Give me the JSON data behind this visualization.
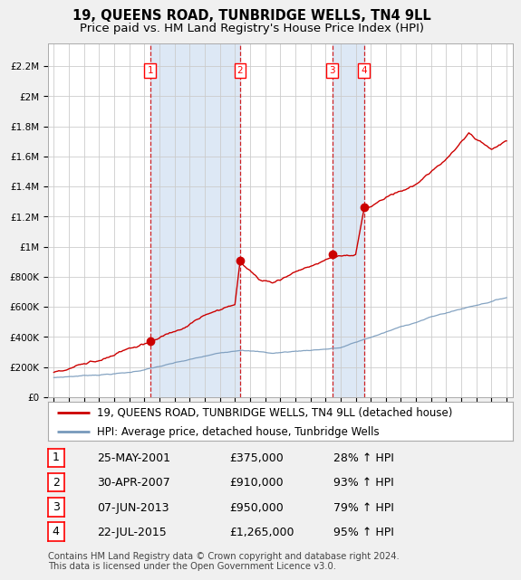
{
  "title": "19, QUEENS ROAD, TUNBRIDGE WELLS, TN4 9LL",
  "subtitle": "Price paid vs. HM Land Registry's House Price Index (HPI)",
  "ylabel_ticks": [
    "£0",
    "£200K",
    "£400K",
    "£600K",
    "£800K",
    "£1M",
    "£1.2M",
    "£1.4M",
    "£1.6M",
    "£1.8M",
    "£2M",
    "£2.2M"
  ],
  "ytick_values": [
    0,
    200000,
    400000,
    600000,
    800000,
    1000000,
    1200000,
    1400000,
    1600000,
    1800000,
    2000000,
    2200000
  ],
  "ylim": [
    0,
    2350000
  ],
  "xlim_start": 1994.6,
  "xlim_end": 2025.4,
  "red_line_color": "#cc0000",
  "blue_line_color": "#7799bb",
  "grid_color": "#cccccc",
  "background_color": "#f0f0f0",
  "plot_bg_color": "#ffffff",
  "highlight_bg_color": "#dde8f5",
  "sale_dates": [
    2001.38,
    2007.33,
    2013.44,
    2015.55
  ],
  "sale_prices": [
    375000,
    910000,
    950000,
    1265000
  ],
  "sale_labels": [
    "1",
    "2",
    "3",
    "4"
  ],
  "vline_color": "#cc0000",
  "legend_line1": "19, QUEENS ROAD, TUNBRIDGE WELLS, TN4 9LL (detached house)",
  "legend_line2": "HPI: Average price, detached house, Tunbridge Wells",
  "table_data": [
    [
      "1",
      "25-MAY-2001",
      "£375,000",
      "28% ↑ HPI"
    ],
    [
      "2",
      "30-APR-2007",
      "£910,000",
      "93% ↑ HPI"
    ],
    [
      "3",
      "07-JUN-2013",
      "£950,000",
      "79% ↑ HPI"
    ],
    [
      "4",
      "22-JUL-2015",
      "£1,265,000",
      "95% ↑ HPI"
    ]
  ],
  "footnote": "Contains HM Land Registry data © Crown copyright and database right 2024.\nThis data is licensed under the Open Government Licence v3.0.",
  "title_fontsize": 10.5,
  "subtitle_fontsize": 9.5,
  "tick_fontsize": 7.5,
  "legend_fontsize": 8.5,
  "table_fontsize": 9
}
